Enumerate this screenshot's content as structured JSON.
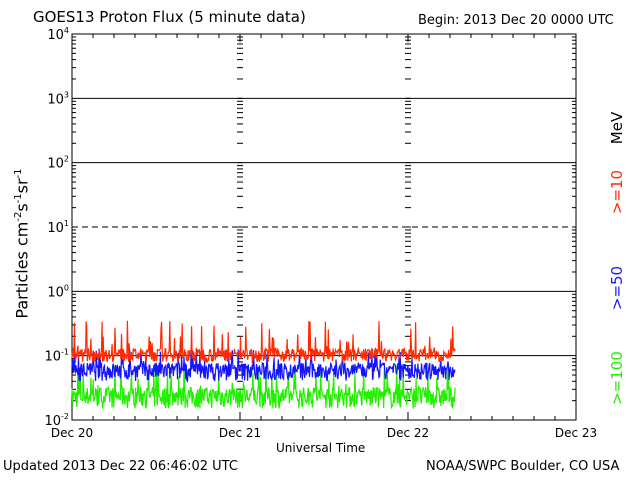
{
  "header": {
    "title": "GOES13 Proton Flux (5 minute data)",
    "begin": "Begin: 2013 Dec 20 0000 UTC"
  },
  "footer": {
    "updated": "Updated 2013 Dec 22 06:46:02 UTC",
    "credit": "NOAA/SWPC Boulder, CO USA"
  },
  "chart_data": {
    "type": "line",
    "title": "GOES13 Proton Flux (5 minute data)",
    "xlabel": "Universal Time",
    "ylabel_parts": [
      "Particles cm",
      "-2",
      "s",
      "-1",
      "sr",
      "-1"
    ],
    "x_tick_labels": [
      "Dec 20",
      "Dec 21",
      "Dec 22",
      "Dec 23"
    ],
    "xlim_days": [
      0,
      3
    ],
    "y_scale": "log",
    "ylim": [
      0.01,
      10000
    ],
    "y_tick_labels": [
      {
        "base": "10",
        "exp": "4"
      },
      {
        "base": "10",
        "exp": "3"
      },
      {
        "base": "10",
        "exp": "2"
      },
      {
        "base": "10",
        "exp": "1"
      },
      {
        "base": "10",
        "exp": "0"
      },
      {
        "base": "10",
        "exp": "-1"
      },
      {
        "base": "10",
        "exp": "-2"
      }
    ],
    "legend_labels": [
      ">=10",
      ">=50",
      ">=100"
    ],
    "legend_unit": "MeV",
    "legend_position": "right",
    "series": [
      {
        "name": ">=10",
        "color": "#ff2a00",
        "min": 0.08,
        "max": 0.35,
        "typical": 0.1
      },
      {
        "name": ">=50",
        "color": "#1414ff",
        "min": 0.04,
        "max": 0.13,
        "typical": 0.06
      },
      {
        "name": ">=100",
        "color": "#22ee00",
        "min": 0.015,
        "max": 0.07,
        "typical": 0.025
      }
    ],
    "data_end_day": 2.28,
    "dashed_gridline_at": 10
  }
}
